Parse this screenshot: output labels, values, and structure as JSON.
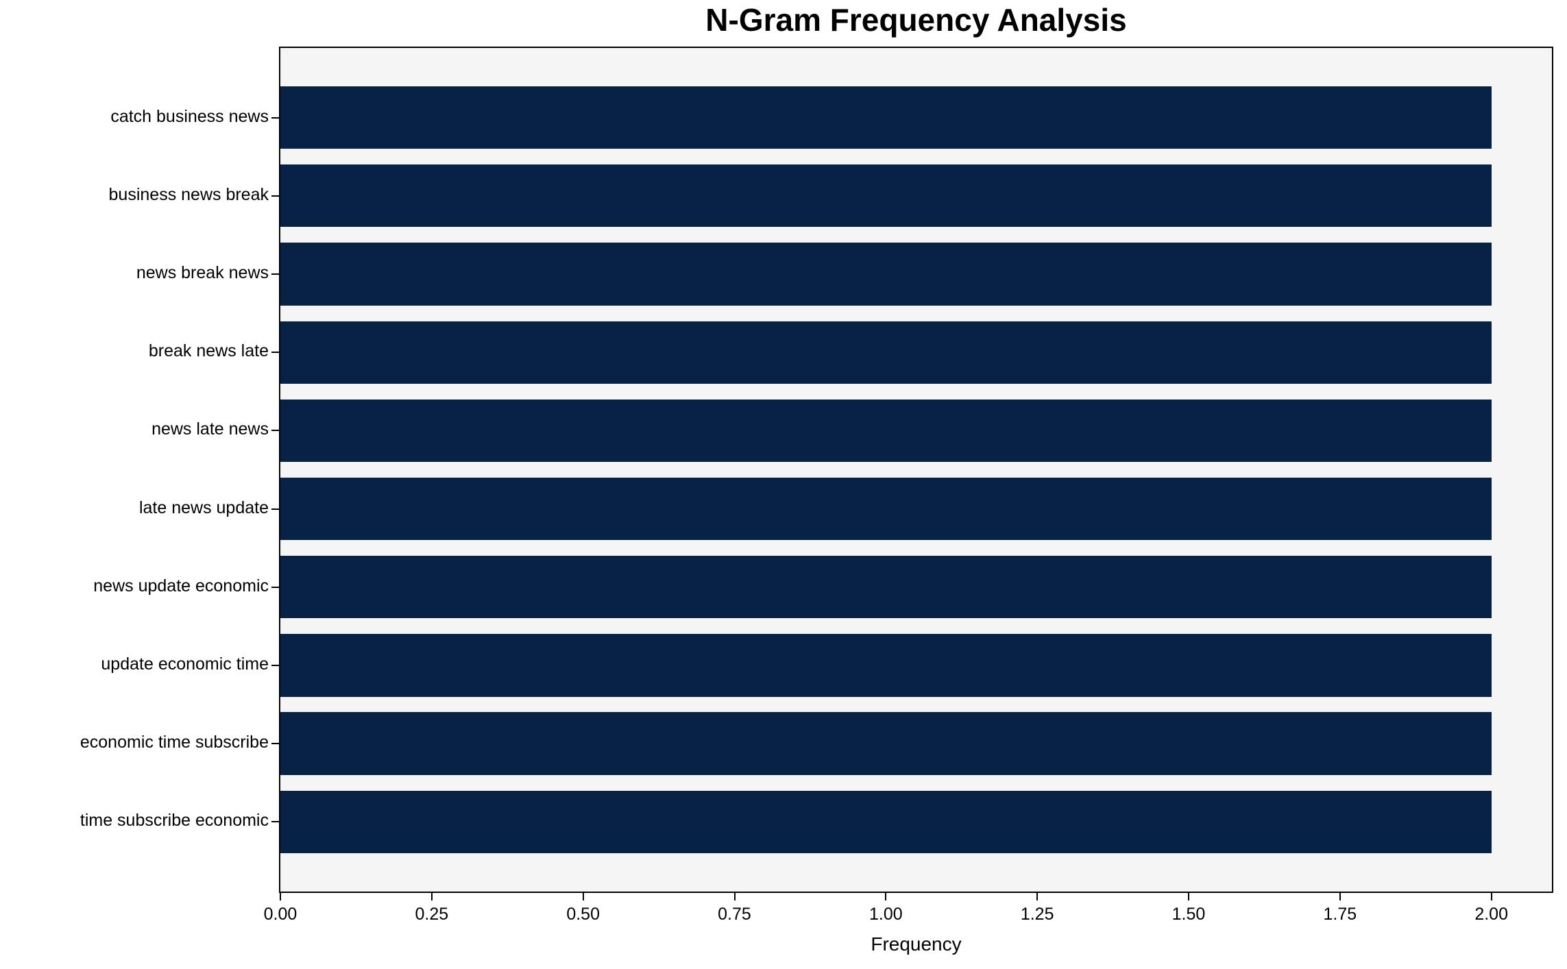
{
  "chart_data": {
    "type": "bar",
    "orientation": "horizontal",
    "title": "N-Gram Frequency Analysis",
    "xlabel": "Frequency",
    "ylabel": "",
    "categories": [
      "catch business news",
      "business news break",
      "news break news",
      "break news late",
      "news late news",
      "late news update",
      "news update economic",
      "update economic time",
      "economic time subscribe",
      "time subscribe economic"
    ],
    "values": [
      2,
      2,
      2,
      2,
      2,
      2,
      2,
      2,
      2,
      2
    ],
    "xlim": [
      0,
      2.1
    ],
    "xtick_values": [
      0,
      0.25,
      0.5,
      0.75,
      1.0,
      1.25,
      1.5,
      1.75,
      2.0
    ],
    "xtick_labels": [
      "0.00",
      "0.25",
      "0.50",
      "0.75",
      "1.00",
      "1.25",
      "1.50",
      "1.75",
      "2.00"
    ],
    "bar_color": "#082246",
    "plot_background": "#f5f5f6",
    "spine_color": "#000000",
    "grid": false,
    "legend": null
  }
}
